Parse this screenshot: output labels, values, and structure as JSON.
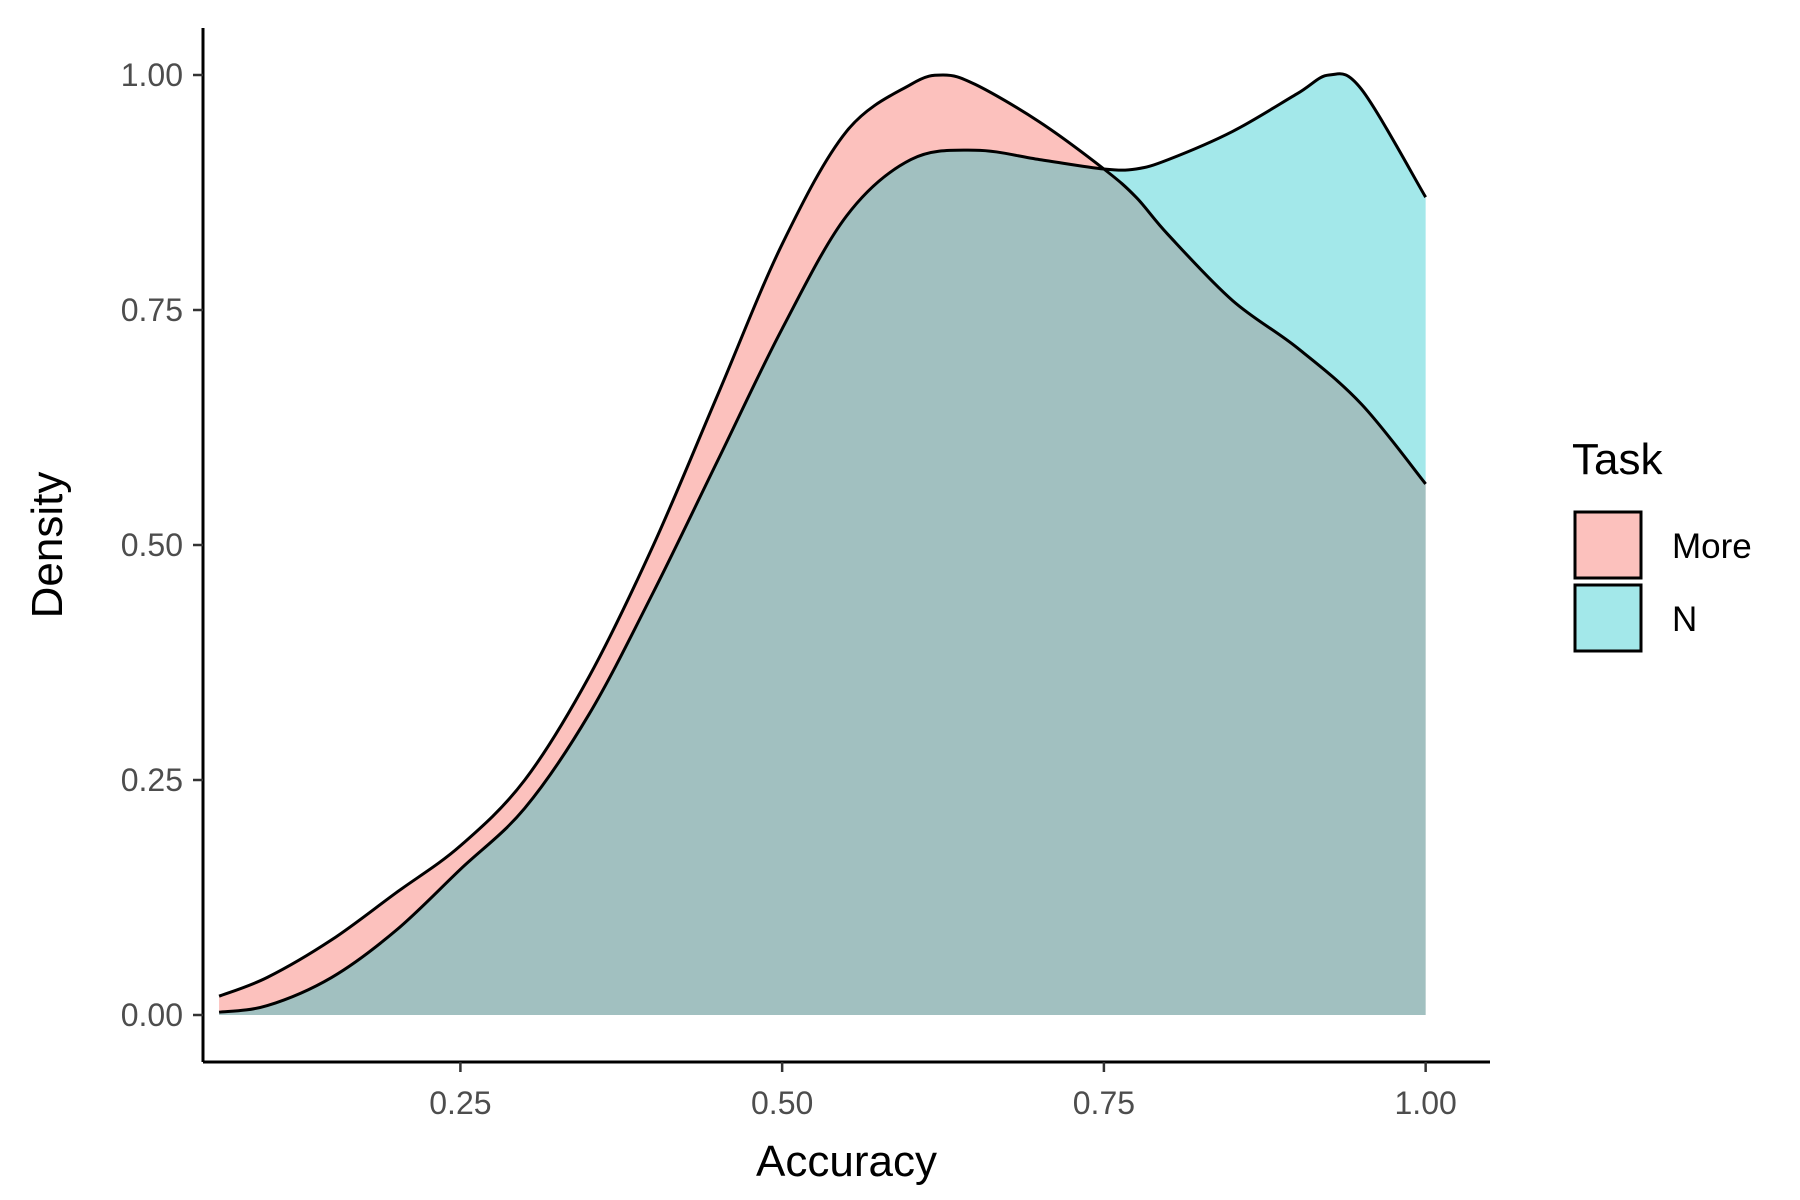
{
  "chart_data": {
    "type": "area",
    "title": "",
    "xlabel": "Accuracy",
    "ylabel": "Density",
    "xlim": [
      0.05,
      1.05
    ],
    "ylim": [
      -0.05,
      1.05
    ],
    "x_ticks": [
      0.25,
      0.5,
      0.75,
      1.0
    ],
    "x_tick_labels": [
      "0.25",
      "0.50",
      "0.75",
      "1.00"
    ],
    "y_ticks": [
      0.0,
      0.25,
      0.5,
      0.75,
      1.0
    ],
    "y_tick_labels": [
      "0.00",
      "0.25",
      "0.50",
      "0.75",
      "1.00"
    ],
    "grid": false,
    "legend": {
      "title": "Task",
      "position": "right"
    },
    "series": [
      {
        "name": "More",
        "color": "#F8766D",
        "fill_opacity": 0.45,
        "x": [
          0.0625,
          0.1,
          0.15,
          0.2,
          0.25,
          0.3,
          0.35,
          0.4,
          0.45,
          0.5,
          0.55,
          0.6,
          0.625,
          0.65,
          0.7,
          0.75,
          0.775,
          0.8,
          0.85,
          0.9,
          0.95,
          1.0
        ],
        "y": [
          0.02,
          0.04,
          0.08,
          0.13,
          0.18,
          0.25,
          0.36,
          0.5,
          0.66,
          0.82,
          0.94,
          0.99,
          1.0,
          0.99,
          0.95,
          0.9,
          0.87,
          0.83,
          0.76,
          0.71,
          0.65,
          0.565
        ]
      },
      {
        "name": "N",
        "color": "#00BFC4",
        "fill_opacity": 0.36,
        "x": [
          0.0625,
          0.1,
          0.15,
          0.2,
          0.25,
          0.3,
          0.35,
          0.4,
          0.45,
          0.5,
          0.55,
          0.6,
          0.65,
          0.7,
          0.75,
          0.775,
          0.8,
          0.85,
          0.9,
          0.925,
          0.95,
          1.0
        ],
        "y": [
          0.003,
          0.01,
          0.04,
          0.09,
          0.155,
          0.22,
          0.32,
          0.45,
          0.59,
          0.73,
          0.85,
          0.91,
          0.92,
          0.91,
          0.9,
          0.9,
          0.91,
          0.94,
          0.98,
          1.0,
          0.985,
          0.87
        ]
      }
    ]
  }
}
